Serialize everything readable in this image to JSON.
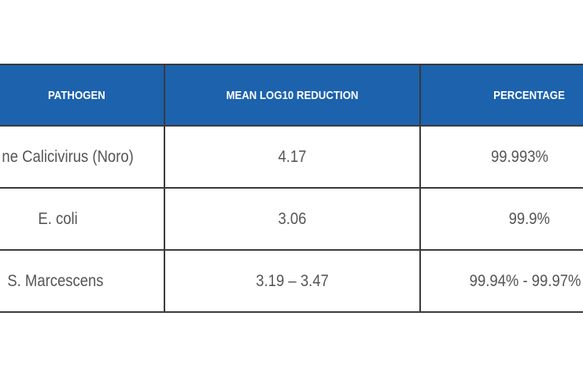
{
  "table": {
    "header": [
      "PATHOGEN",
      "MEAN LOG10 REDUCTION",
      "PERCENTAGE"
    ],
    "rows": [
      [
        "ne Calicivirus (Noro)",
        "4.17",
        "99.993%"
      ],
      [
        "E. coli",
        "3.06",
        "99.9%"
      ],
      [
        "S. Marcescens",
        "3.19 – 3.47",
        "99.94% - 99.97%"
      ]
    ]
  }
}
